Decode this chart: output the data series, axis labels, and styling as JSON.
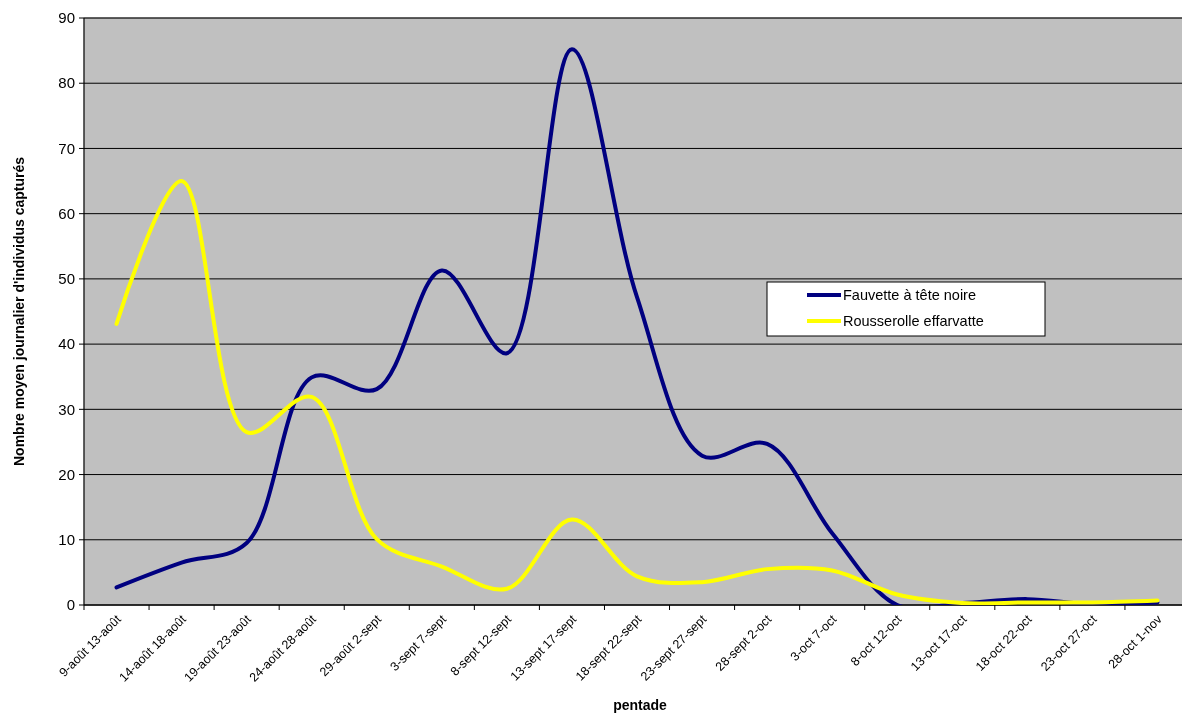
{
  "chart_data": {
    "type": "line",
    "xlabel": "pentade",
    "ylabel": "Nombre moyen journalier d'individus capturés",
    "categories": [
      "9-août 13-août",
      "14-août 18-août",
      "19-août 23-août",
      "24-août 28-août",
      "29-août 2-sept",
      "3-sept 7-sept",
      "8-sept 12-sept",
      "13-sept 17-sept",
      "18-sept 22-sept",
      "23-sept 27-sept",
      "28-sept 2-oct",
      "3-oct 7-oct",
      "8-oct 12-oct",
      "13-oct 17-oct",
      "18-oct 22-oct",
      "23-oct 27-oct",
      "28-oct 1-nov"
    ],
    "series": [
      {
        "name": "Fauvette à tête noire",
        "color": "#000080",
        "values": [
          2.7,
          6.5,
          9.5,
          34.9,
          33.1,
          51.3,
          38.6,
          85.2,
          47.2,
          22.9,
          24.7,
          11.0,
          0,
          0.3,
          0.9,
          0.1,
          0.4
        ]
      },
      {
        "name": "Rousserolle effarvatte",
        "color": "#ffff00",
        "values": [
          43.1,
          65,
          26.5,
          31.9,
          10.1,
          5.9,
          2.5,
          13.1,
          4.4,
          3.5,
          5.5,
          5.3,
          1.6,
          0.3,
          0.4,
          0.4,
          0.7
        ]
      }
    ],
    "ylim": [
      0,
      90
    ],
    "yticks": [
      0,
      10,
      20,
      30,
      40,
      50,
      60,
      70,
      80,
      90
    ],
    "grid": "y",
    "legend": "right",
    "marker": "none",
    "line_style": "solid"
  }
}
